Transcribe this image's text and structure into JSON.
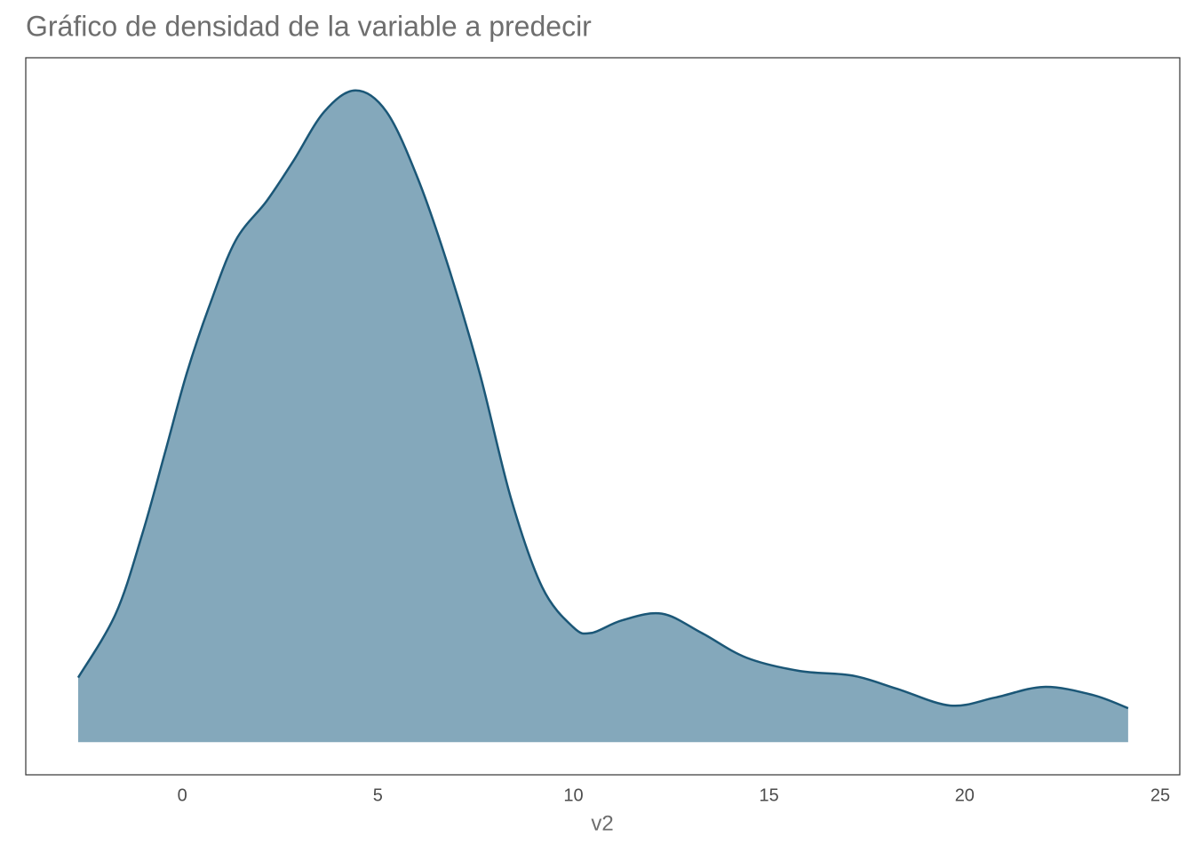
{
  "chart_data": {
    "type": "density",
    "title": "Gráfico de densidad de la variable a predecir",
    "x_label": "v2",
    "x": [
      -2.66,
      -1.7,
      -1.02,
      -0.45,
      0.11,
      0.68,
      1.36,
      2.16,
      2.84,
      3.63,
      4.43,
      5.22,
      6.02,
      6.81,
      7.61,
      8.4,
      9.2,
      9.99,
      10.45,
      11.24,
      12.26,
      13.28,
      14.42,
      15.78,
      17.14,
      18.28,
      19.64,
      20.78,
      22.02,
      23.27,
      24.18
    ],
    "values": [
      0.0097,
      0.0193,
      0.0313,
      0.0433,
      0.0553,
      0.0653,
      0.0753,
      0.0813,
      0.0873,
      0.0947,
      0.0979,
      0.0947,
      0.0847,
      0.0713,
      0.0553,
      0.0367,
      0.0233,
      0.0173,
      0.0164,
      0.0183,
      0.0193,
      0.0164,
      0.0127,
      0.0107,
      0.01,
      0.008,
      0.0055,
      0.0067,
      0.0083,
      0.0071,
      0.0051
    ],
    "fill_color": "#84a8bb",
    "line_color": "#1b5777",
    "xlim": [
      -4.0,
      25.5
    ],
    "xticks": [
      0,
      5,
      10,
      15,
      20,
      25
    ],
    "ylim": [
      -0.0049,
      0.1028
    ]
  }
}
